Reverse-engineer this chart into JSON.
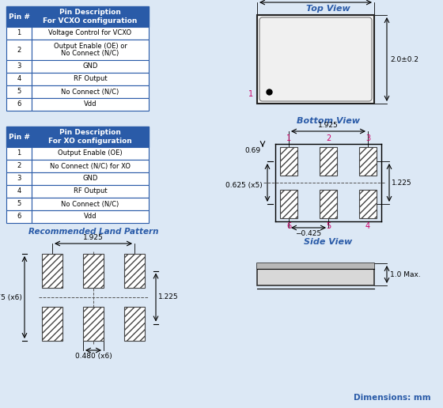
{
  "bg_color": "#dce8f5",
  "table_header_color": "#2a5ba8",
  "table_header_text_color": "#ffffff",
  "table_border_color": "#2a5ba8",
  "table_text_color": "#000000",
  "label_color_pink": "#cc0066",
  "title_color": "#2a5ba8",
  "vcxo_header": [
    "Pin #",
    "Pin Description\nFor VCXO configuration"
  ],
  "vcxo_rows": [
    [
      "1",
      "Voltage Control for VCXO"
    ],
    [
      "2",
      "Output Enable (OE) or\nNo Connect (N/C)"
    ],
    [
      "3",
      "GND"
    ],
    [
      "4",
      "RF Output"
    ],
    [
      "5",
      "No Connect (N/C)"
    ],
    [
      "6",
      "Vdd"
    ]
  ],
  "xo_header": [
    "Pin #",
    "Pin Description\nFor XO configuration"
  ],
  "xo_rows": [
    [
      "1",
      "Output Enable (OE)"
    ],
    [
      "2",
      "No Connect (N/C) for XO"
    ],
    [
      "3",
      "GND"
    ],
    [
      "4",
      "RF Output"
    ],
    [
      "5",
      "No Connect (N/C)"
    ],
    [
      "6",
      "Vdd"
    ]
  ],
  "dim_note": "Dimensions: mm"
}
